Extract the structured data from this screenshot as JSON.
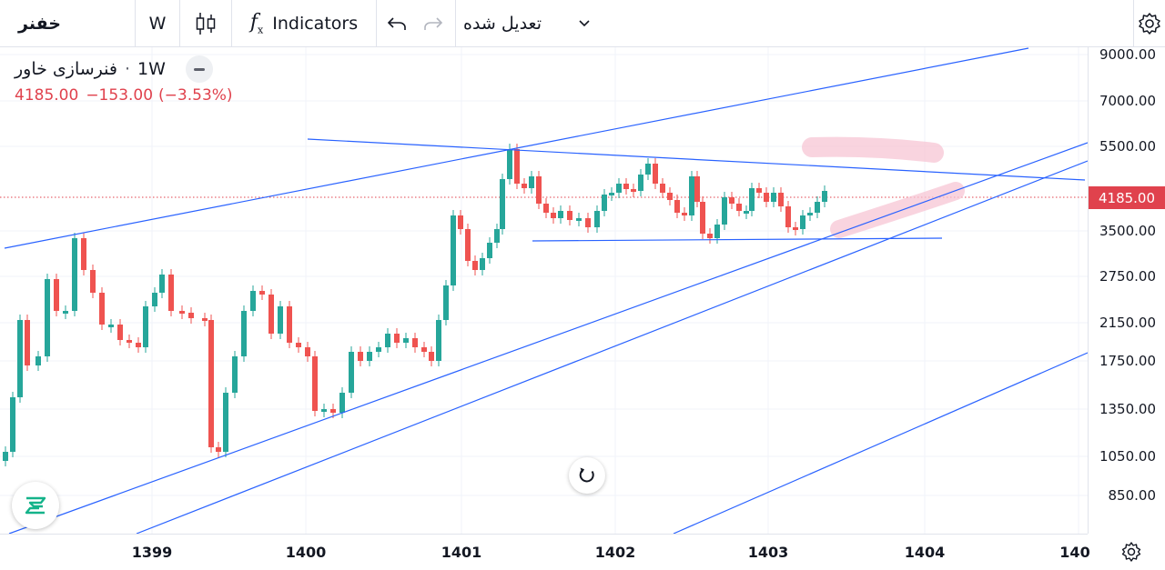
{
  "toolbar": {
    "symbol": "خفنر",
    "interval": "W",
    "indicators_label": "Indicators",
    "adjustment": "تعدیل شده"
  },
  "legend": {
    "name": "فنرسازی خاور",
    "interval": "1W",
    "last": "4185.00",
    "change": "−153.00",
    "change_pct": "(−3.53%)"
  },
  "colors": {
    "up": "#26a69a",
    "down": "#ef5350",
    "trendline": "#2962ff",
    "highlight": "#f7c6d4",
    "last_price": "#e0424d"
  },
  "icons": {
    "chart_type": "candles-icon",
    "undo": "undo-icon",
    "redo": "redo-icon",
    "dropdown": "chevron-down-icon",
    "settings": "gear-icon",
    "reset": "reset-icon",
    "logo": "logo-icon"
  },
  "price_axis": {
    "ticks": [
      "9000.00",
      "7000.00",
      "5500.00",
      "3500.00",
      "2750.00",
      "2150.00",
      "1750.00",
      "1350.00",
      "1050.00",
      "850.00"
    ],
    "last_price": "4185.00",
    "scale": "log"
  },
  "time_axis": {
    "ticks": [
      "1399",
      "1400",
      "1401",
      "1402",
      "1403",
      "1404",
      "140"
    ]
  }
}
